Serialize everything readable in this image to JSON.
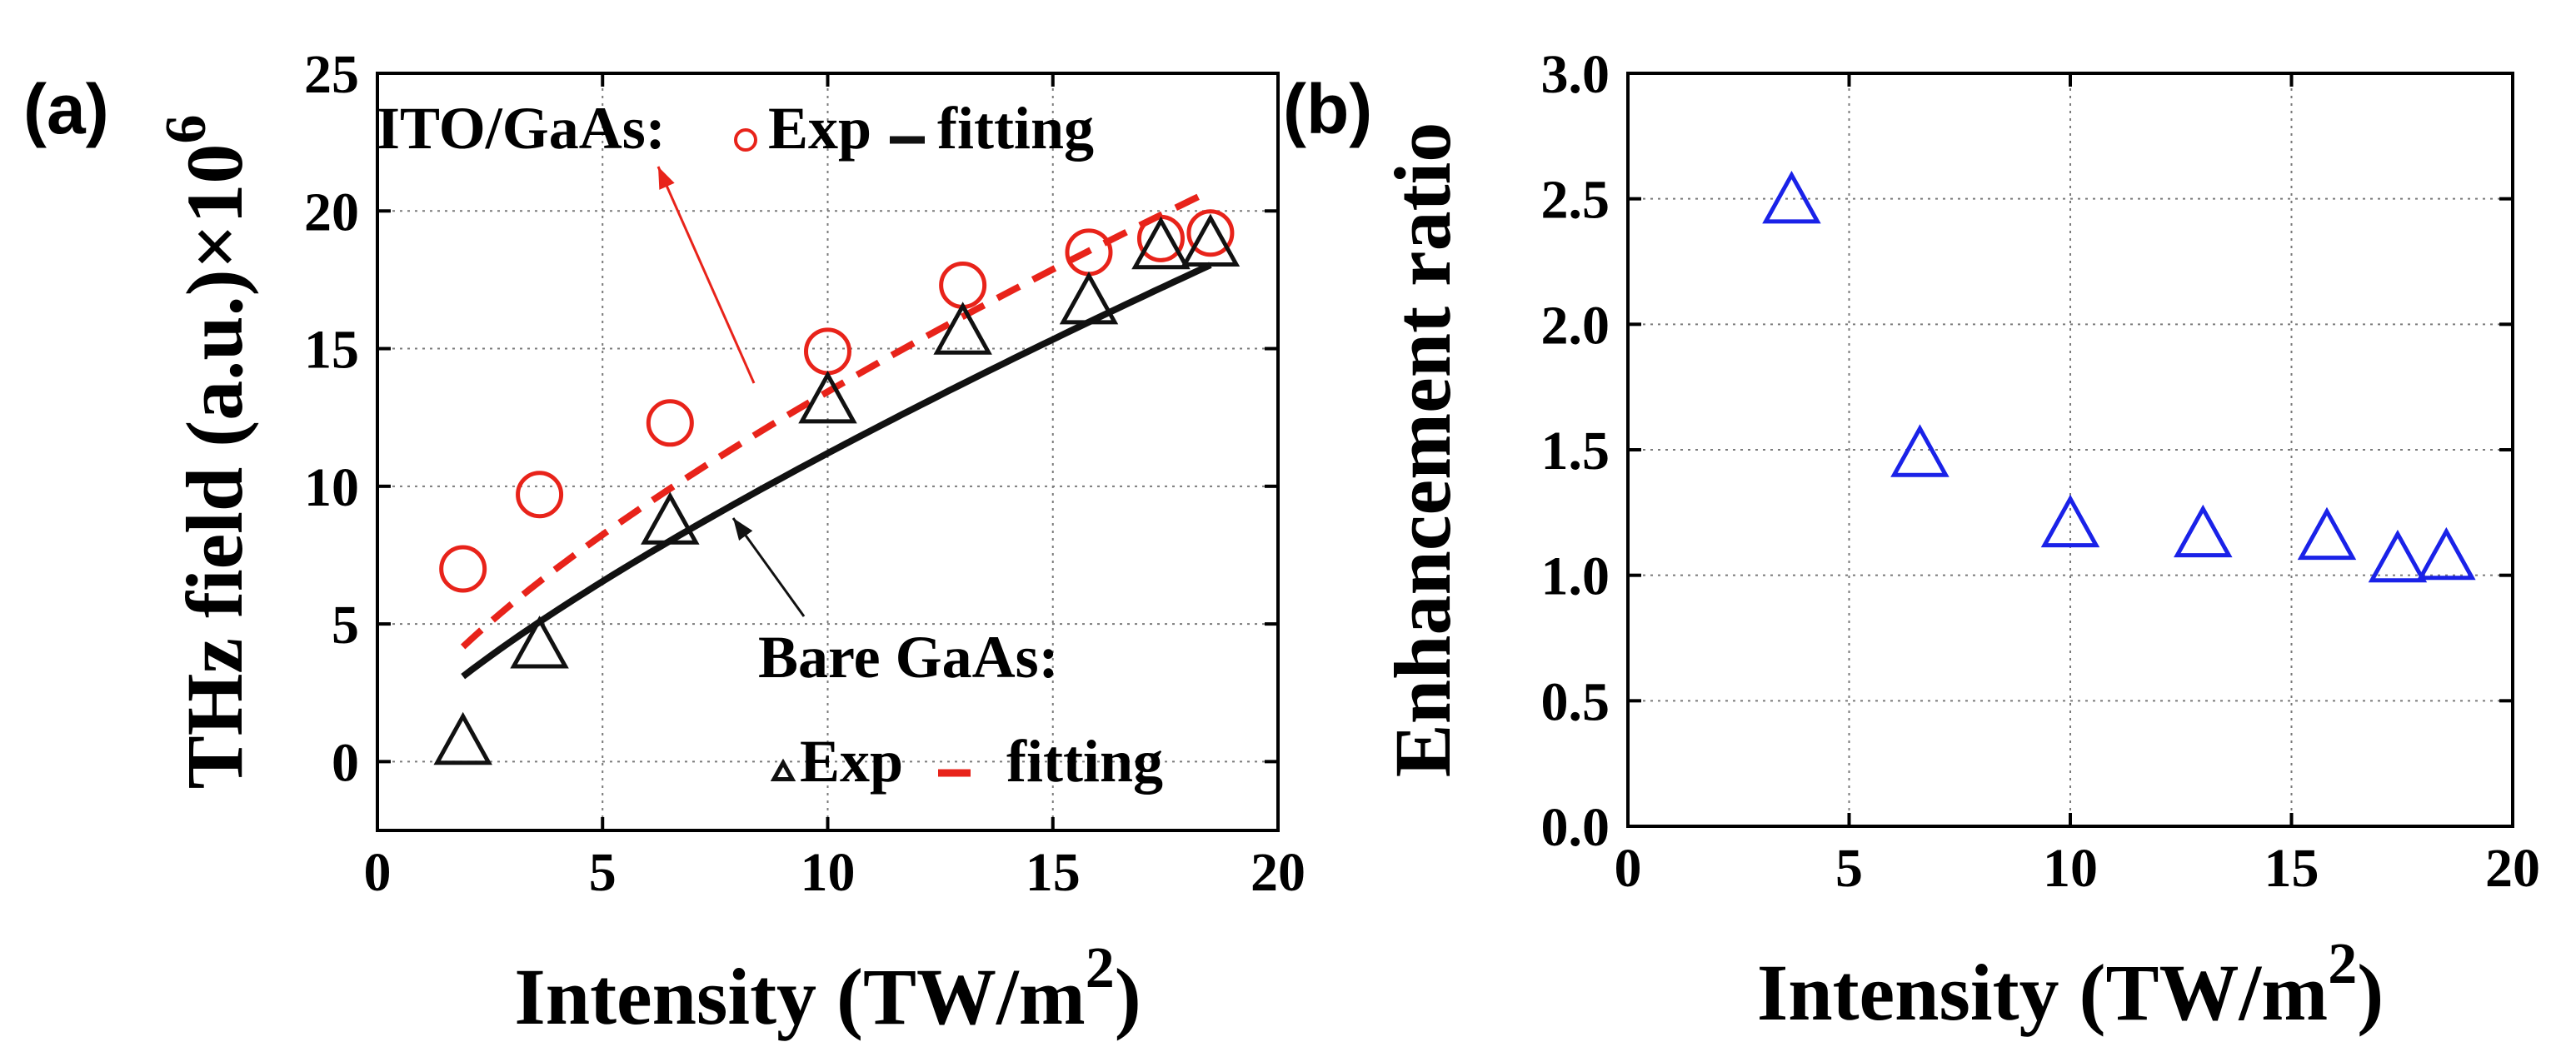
{
  "colors": {
    "ito": "#e8231a",
    "bare": "#111111",
    "ratio": "#1a22e8",
    "grid": "#7a7a7a"
  },
  "chart_data": [
    {
      "type": "scatter",
      "panel_label": "(a)",
      "title": "",
      "xlabel": "Intensity (TW/m",
      "xlabel_sup": "2",
      "xlabel_close": ")",
      "ylabel": "THz field (a.u.)×10",
      "ylabel_sup": "6",
      "xlim": [
        0,
        20
      ],
      "ylim": [
        -2.5,
        25
      ],
      "xticks": [
        0,
        5,
        10,
        15,
        20
      ],
      "yticks": [
        0,
        5,
        10,
        15,
        20,
        25
      ],
      "grid": true,
      "series": [
        {
          "name": "ITO/GaAs Exp",
          "marker": "circle",
          "color": "#e8231a",
          "x": [
            1.9,
            3.6,
            6.5,
            10.0,
            13.0,
            15.8,
            17.4,
            18.5
          ],
          "y": [
            7.0,
            9.7,
            12.3,
            14.9,
            17.3,
            18.5,
            19.0,
            19.2
          ]
        },
        {
          "name": "ITO/GaAs fitting",
          "line": "dashed",
          "color": "#e8231a",
          "fit": {
            "a": 2.65,
            "b": 0.705
          },
          "xrange": [
            1.9,
            18.5
          ]
        },
        {
          "name": "Bare GaAs Exp",
          "marker": "triangle",
          "color": "#111111",
          "x": [
            1.9,
            3.6,
            6.5,
            10.0,
            13.0,
            15.8,
            17.4,
            18.5
          ],
          "y": [
            0.6,
            4.1,
            8.6,
            13.0,
            15.5,
            16.6,
            18.6,
            18.7
          ]
        },
        {
          "name": "Bare GaAs fitting",
          "line": "solid",
          "color": "#111111",
          "fit": {
            "a": 1.88,
            "b": 0.775
          },
          "xrange": [
            1.9,
            18.5
          ]
        }
      ],
      "legend": {
        "ito_label": "ITO/GaAs:",
        "ito_exp": "Exp",
        "ito_fit": "fitting",
        "bare_label": "Bare GaAs:",
        "bare_exp": "Exp",
        "bare_fit": "fitting"
      }
    },
    {
      "type": "scatter",
      "panel_label": "(b)",
      "title": "",
      "xlabel": "Intensity (TW/m",
      "xlabel_sup": "2",
      "xlabel_close": ")",
      "ylabel": "Enhancement ratio",
      "xlim": [
        0,
        20
      ],
      "ylim": [
        0,
        3
      ],
      "xticks": [
        0,
        5,
        10,
        15,
        20
      ],
      "yticks": [
        "0.0",
        "0.5",
        "1.0",
        "1.5",
        "2.0",
        "2.5",
        "3.0"
      ],
      "grid": true,
      "series": [
        {
          "name": "Enhancement ratio",
          "marker": "triangle",
          "color": "#1a22e8",
          "x": [
            3.7,
            6.6,
            10.0,
            13.0,
            15.8,
            17.4,
            18.5
          ],
          "y": [
            2.48,
            1.47,
            1.19,
            1.15,
            1.14,
            1.05,
            1.06
          ]
        }
      ]
    }
  ]
}
